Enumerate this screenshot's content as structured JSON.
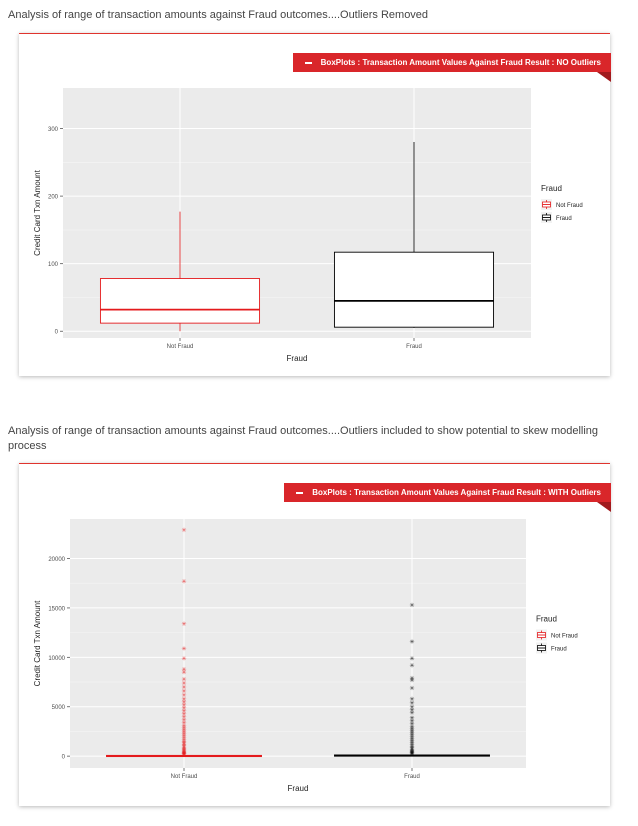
{
  "captions": [
    "Analysis of range of transaction amounts against Fraud outcomes....Outliers Removed",
    "Analysis of range of transaction amounts against Fraud outcomes....Outliers included to show potential to skew modelling process"
  ],
  "cards": [
    {
      "ribbon": "BoxPlots : Transaction Amount Values Against Fraud Result : NO Outliers"
    },
    {
      "ribbon": "BoxPlots : Transaction Amount Values Against Fraud Result : WITH Outliers"
    }
  ],
  "chart_data": [
    {
      "type": "box",
      "title": "",
      "xlabel": "Fraud",
      "ylabel": "Credit Card Txn Amount",
      "categories": [
        "Not Fraud",
        "Fraud"
      ],
      "ylim": [
        -10,
        360
      ],
      "yticks": [
        0,
        100,
        200,
        300
      ],
      "grid": true,
      "legend": {
        "title": "Fraud",
        "position": "right",
        "entries": [
          "Not Fraud",
          "Fraud"
        ]
      },
      "colors": [
        "#e41a1c",
        "#000000"
      ],
      "boxes": [
        {
          "name": "Not Fraud",
          "min": 0,
          "q1": 12,
          "median": 32,
          "q3": 78,
          "max": 177
        },
        {
          "name": "Fraud",
          "min": 5,
          "q1": 6,
          "median": 45,
          "q3": 117,
          "max": 280
        }
      ]
    },
    {
      "type": "box",
      "title": "",
      "xlabel": "Fraud",
      "ylabel": "Credit Card Txn Amount",
      "categories": [
        "Not Fraud",
        "Fraud"
      ],
      "ylim": [
        -1200,
        24000
      ],
      "yticks": [
        0,
        5000,
        10000,
        15000,
        20000
      ],
      "grid": true,
      "legend": {
        "title": "Fraud",
        "position": "right",
        "entries": [
          "Not Fraud",
          "Fraud"
        ]
      },
      "colors": [
        "#e41a1c",
        "#000000"
      ],
      "boxes": [
        {
          "name": "Not Fraud",
          "min": 0,
          "q1": 6,
          "median": 22,
          "q3": 77,
          "max": 185,
          "outliers": [
            22900,
            17700,
            13400,
            10900,
            9900,
            8800,
            8500,
            7800,
            7400,
            7000,
            6600,
            6200,
            5800,
            5500,
            5200,
            4900,
            4600,
            4300,
            4000,
            3700,
            3400,
            3100,
            2900,
            2700,
            2500,
            2300,
            2100,
            1900,
            1700,
            1500,
            1350,
            1200,
            1050,
            900,
            780,
            660,
            560,
            470,
            400,
            340,
            290,
            250,
            220
          ]
        },
        {
          "name": "Fraud",
          "min": 0,
          "q1": 10,
          "median": 50,
          "q3": 120,
          "max": 280,
          "outliers": [
            15300,
            11600,
            9900,
            9200,
            7900,
            7700,
            6900,
            5800,
            5400,
            5000,
            4700,
            4400,
            3900,
            3600,
            3300,
            3000,
            2800,
            2600,
            2400,
            2200,
            2000,
            1800,
            1600,
            1400,
            1200,
            1000,
            850,
            700,
            580,
            480,
            400,
            340,
            300
          ]
        }
      ]
    }
  ]
}
